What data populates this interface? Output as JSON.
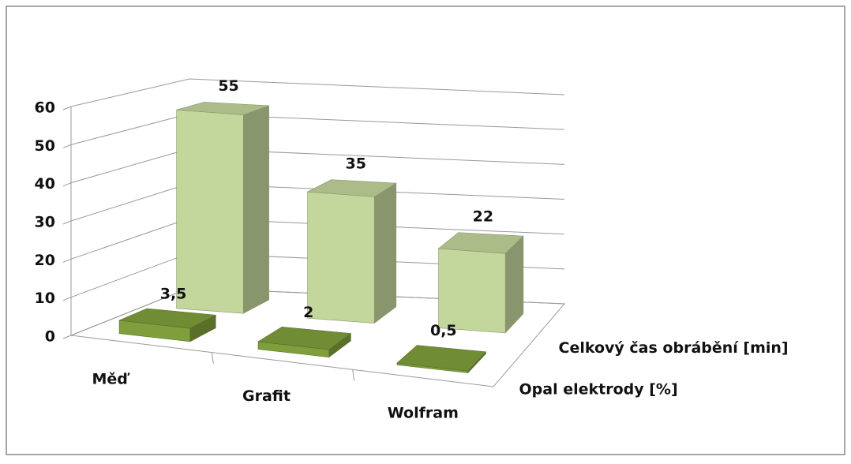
{
  "chart_data": {
    "type": "bar3d",
    "categories": [
      "Měď",
      "Grafit",
      "Wolfram"
    ],
    "series": [
      {
        "name": "Opal elektrody [%]",
        "color": "#7f9f3c",
        "values": [
          3.5,
          2,
          0.5
        ],
        "value_labels": [
          "3,5",
          "2",
          "0,5"
        ]
      },
      {
        "name": "Celkový čas obrábění [min]",
        "color": "#c3d69b",
        "values": [
          55,
          35,
          22
        ]
      }
    ],
    "ylim": [
      0,
      60
    ],
    "yticks": [
      0,
      10,
      20,
      30,
      40,
      50,
      60
    ],
    "grid": true
  }
}
